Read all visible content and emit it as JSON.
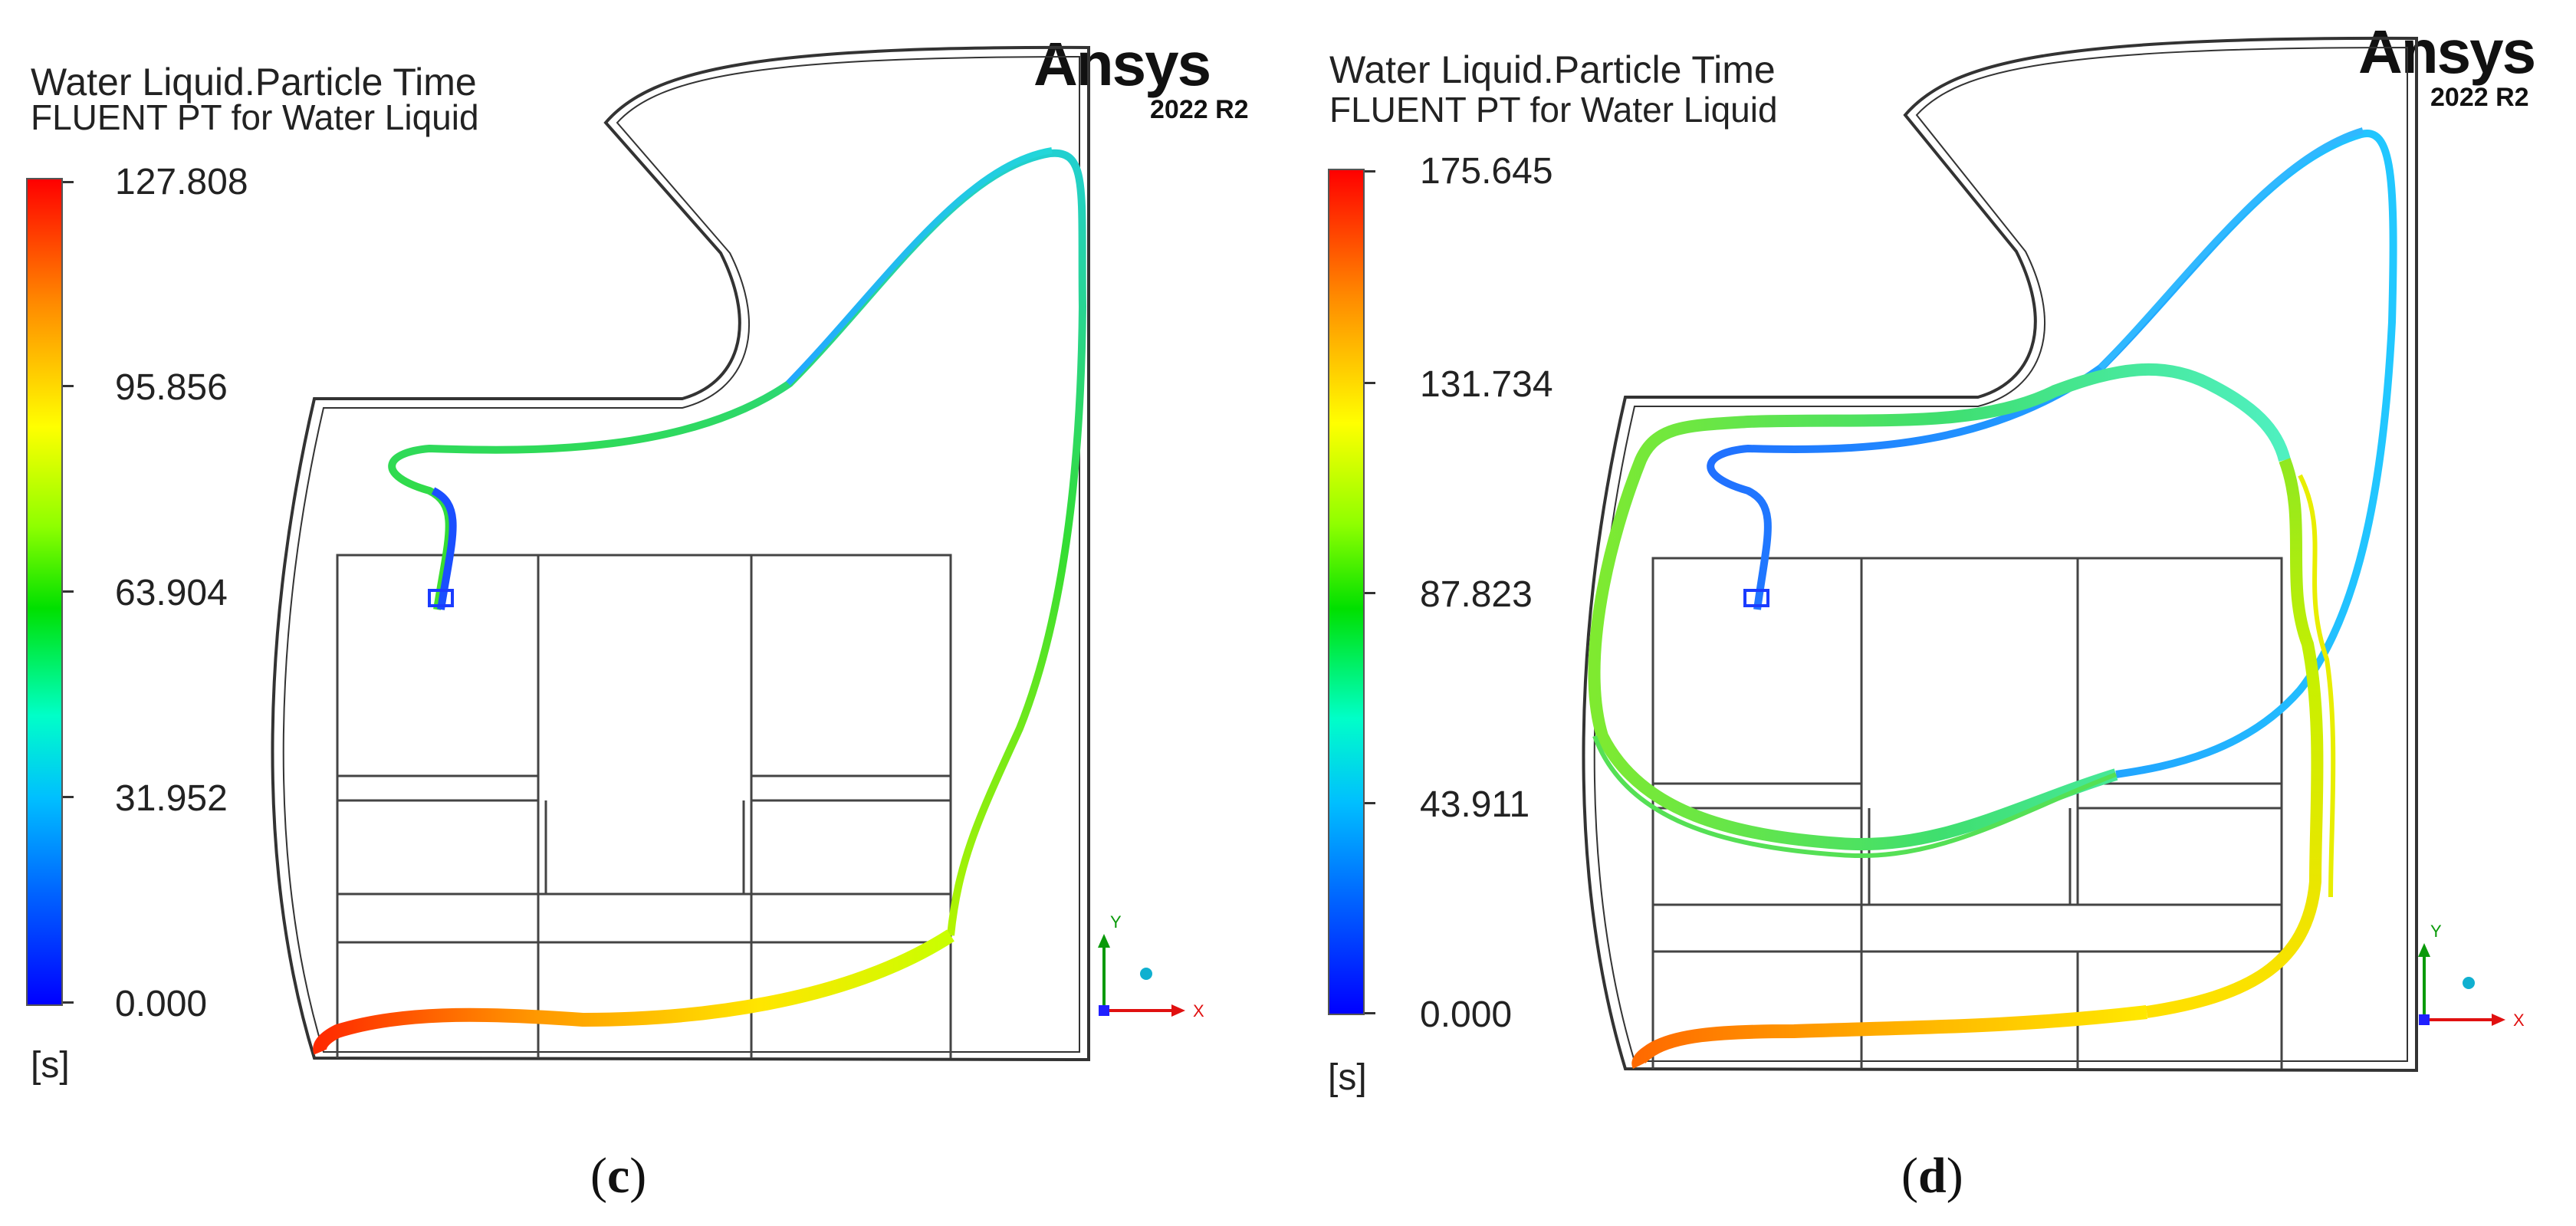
{
  "panels": [
    {
      "id": "c",
      "title_line1": "Water Liquid.Particle Time",
      "title_line2": "FLUENT PT for Water Liquid",
      "colorbar": {
        "ticks": [
          "127.808",
          "95.856",
          "63.904",
          "31.952",
          "0.000"
        ],
        "unit": "[s]"
      },
      "brand": "Ansys",
      "version": "2022 R2",
      "axis_labels": {
        "y": "Y",
        "x": "X"
      },
      "caption": "c"
    },
    {
      "id": "d",
      "title_line1": "Water Liquid.Particle Time",
      "title_line2": "FLUENT PT for Water Liquid",
      "colorbar": {
        "ticks": [
          "175.645",
          "131.734",
          "87.823",
          "43.911",
          "0.000"
        ],
        "unit": "[s]"
      },
      "brand": "Ansys",
      "version": "2022 R2",
      "axis_labels": {
        "y": "Y",
        "x": "X"
      },
      "caption": "d"
    }
  ],
  "colors": {
    "max": "#ff0000",
    "mid_high": "#ffff00",
    "mid": "#00e000",
    "mid_low": "#00ffff",
    "min": "#0000ff"
  }
}
